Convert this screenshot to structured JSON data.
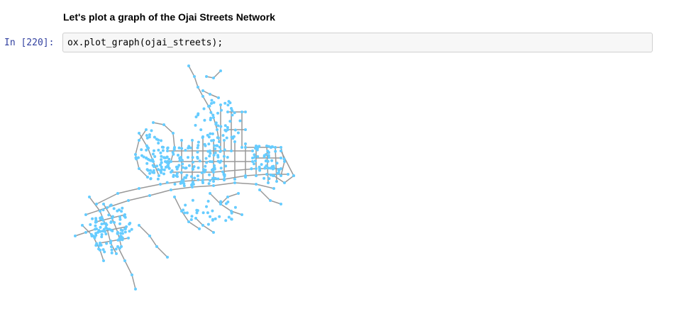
{
  "markdown": {
    "heading": "Let's plot a graph of the Ojai Streets Network"
  },
  "cell": {
    "prompt": "In [220]:",
    "code": "ox.plot_graph(ojai_streets);"
  },
  "plot": {
    "edge_color": "#999999",
    "node_color": "#66ccff"
  }
}
